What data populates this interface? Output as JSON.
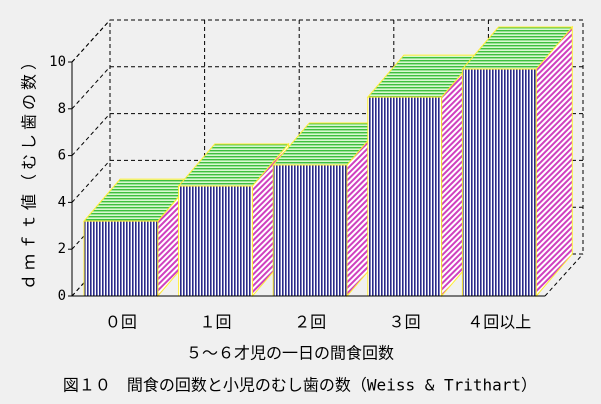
{
  "chart_data": {
    "type": "bar3d",
    "caption": "図１０　間食の回数と小児のむし歯の数（Weiss & Trithart）",
    "x_label": "５～６才児の一日の間食回数",
    "y_label": "ｄｍｆｔ値（むし歯の数）",
    "categories": [
      "０回",
      "１回",
      "２回",
      "３回",
      "４回以上"
    ],
    "values": [
      3.2,
      4.7,
      5.6,
      8.5,
      9.7
    ],
    "ylim": [
      0,
      10
    ],
    "yticks": [
      0,
      2,
      4,
      6,
      8,
      10
    ],
    "grid": true
  }
}
